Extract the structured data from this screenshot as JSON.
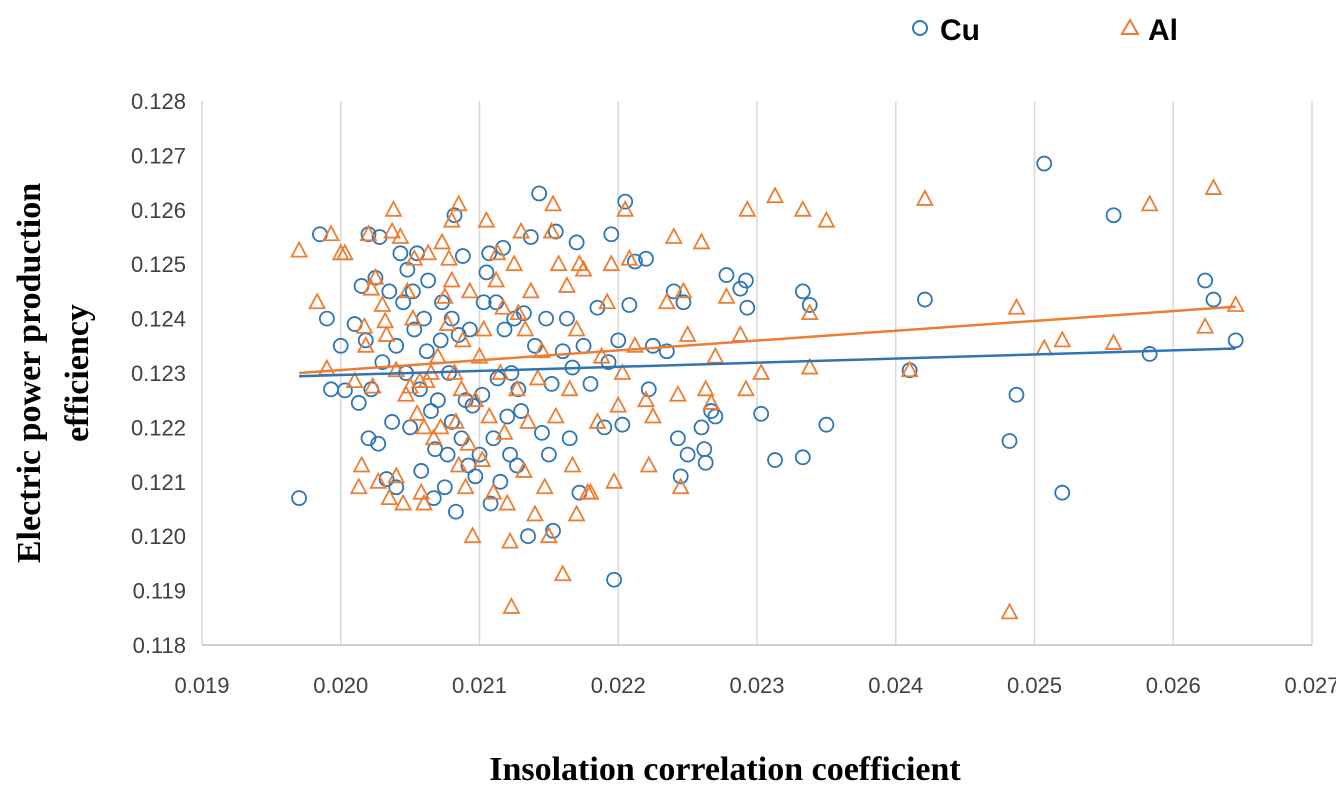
{
  "chart_data": {
    "type": "scatter",
    "xlabel": "Insolation correlation coefficient",
    "ylabel": "Electric power production efficiency",
    "xlim": [
      0.019,
      0.027
    ],
    "ylim": [
      0.118,
      0.128
    ],
    "x_ticks": [
      "0.019",
      "0.020",
      "0.021",
      "0.022",
      "0.023",
      "0.024",
      "0.025",
      "0.026",
      "0.027"
    ],
    "y_ticks": [
      "0.118",
      "0.119",
      "0.120",
      "0.121",
      "0.122",
      "0.123",
      "0.124",
      "0.125",
      "0.126",
      "0.127",
      "0.128"
    ],
    "grid": "vertical",
    "legend_position": "top-right",
    "colors": {
      "Cu": "#2e75b6",
      "Al": "#ed7d31",
      "grid": "#d9d9d9",
      "axis": "#bfbfbf"
    },
    "series": [
      {
        "name": "Cu",
        "marker": "circle",
        "trendline": {
          "x": [
            0.0197,
            0.02645
          ],
          "y": [
            0.12294,
            0.12345
          ]
        },
        "points": [
          [
            0.0197,
            0.1207
          ],
          [
            0.01985,
            0.12555
          ],
          [
            0.0199,
            0.124
          ],
          [
            0.01993,
            0.1227
          ],
          [
            0.02,
            0.1235
          ],
          [
            0.02003,
            0.12268
          ],
          [
            0.0201,
            0.1239
          ],
          [
            0.02013,
            0.12245
          ],
          [
            0.02015,
            0.1246
          ],
          [
            0.02018,
            0.1236
          ],
          [
            0.0202,
            0.1218
          ],
          [
            0.0202,
            0.12555
          ],
          [
            0.02022,
            0.1227
          ],
          [
            0.02025,
            0.12475
          ],
          [
            0.02027,
            0.1217
          ],
          [
            0.02028,
            0.1255
          ],
          [
            0.0203,
            0.1232
          ],
          [
            0.02033,
            0.12105
          ],
          [
            0.02035,
            0.1245
          ],
          [
            0.02037,
            0.1221
          ],
          [
            0.0204,
            0.1235
          ],
          [
            0.0204,
            0.1209
          ],
          [
            0.02043,
            0.1252
          ],
          [
            0.02045,
            0.1243
          ],
          [
            0.02047,
            0.123
          ],
          [
            0.02048,
            0.1249
          ],
          [
            0.0205,
            0.122
          ],
          [
            0.02052,
            0.1245
          ],
          [
            0.02053,
            0.1238
          ],
          [
            0.02055,
            0.1252
          ],
          [
            0.02057,
            0.1227
          ],
          [
            0.02058,
            0.1212
          ],
          [
            0.0206,
            0.124
          ],
          [
            0.02062,
            0.1234
          ],
          [
            0.02063,
            0.1247
          ],
          [
            0.02065,
            0.1223
          ],
          [
            0.02067,
            0.1207
          ],
          [
            0.02068,
            0.1216
          ],
          [
            0.0207,
            0.1225
          ],
          [
            0.02072,
            0.1236
          ],
          [
            0.02073,
            0.1243
          ],
          [
            0.02075,
            0.1209
          ],
          [
            0.02077,
            0.1215
          ],
          [
            0.02078,
            0.123
          ],
          [
            0.0208,
            0.124
          ],
          [
            0.0208,
            0.1221
          ],
          [
            0.02082,
            0.1259
          ],
          [
            0.02083,
            0.12045
          ],
          [
            0.02085,
            0.1237
          ],
          [
            0.02087,
            0.1218
          ],
          [
            0.02088,
            0.12515
          ],
          [
            0.0209,
            0.1225
          ],
          [
            0.02092,
            0.1213
          ],
          [
            0.02093,
            0.1238
          ],
          [
            0.02095,
            0.1224
          ],
          [
            0.02097,
            0.1211
          ],
          [
            0.021,
            0.1215
          ],
          [
            0.02102,
            0.1226
          ],
          [
            0.02103,
            0.1243
          ],
          [
            0.02105,
            0.12485
          ],
          [
            0.02107,
            0.1252
          ],
          [
            0.02108,
            0.1206
          ],
          [
            0.0211,
            0.1218
          ],
          [
            0.02112,
            0.1243
          ],
          [
            0.02113,
            0.1229
          ],
          [
            0.02115,
            0.121
          ],
          [
            0.02117,
            0.1253
          ],
          [
            0.02118,
            0.1238
          ],
          [
            0.0212,
            0.1222
          ],
          [
            0.02122,
            0.1215
          ],
          [
            0.02123,
            0.123
          ],
          [
            0.02125,
            0.124
          ],
          [
            0.02127,
            0.1213
          ],
          [
            0.02128,
            0.1227
          ],
          [
            0.0213,
            0.1223
          ],
          [
            0.02132,
            0.1241
          ],
          [
            0.02135,
            0.12
          ],
          [
            0.02137,
            0.1255
          ],
          [
            0.0214,
            0.1235
          ],
          [
            0.02143,
            0.1263
          ],
          [
            0.02145,
            0.1219
          ],
          [
            0.02148,
            0.124
          ],
          [
            0.0215,
            0.1215
          ],
          [
            0.02152,
            0.1228
          ],
          [
            0.02153,
            0.1201
          ],
          [
            0.02155,
            0.1256
          ],
          [
            0.0216,
            0.1234
          ],
          [
            0.02163,
            0.124
          ],
          [
            0.02165,
            0.1218
          ],
          [
            0.02167,
            0.1231
          ],
          [
            0.0217,
            0.1254
          ],
          [
            0.02172,
            0.1208
          ],
          [
            0.02175,
            0.1235
          ],
          [
            0.0218,
            0.1228
          ],
          [
            0.02185,
            0.1242
          ],
          [
            0.0219,
            0.122
          ],
          [
            0.02193,
            0.1232
          ],
          [
            0.02195,
            0.12555
          ],
          [
            0.02197,
            0.1192
          ],
          [
            0.022,
            0.1236
          ],
          [
            0.02203,
            0.12205
          ],
          [
            0.02205,
            0.12615
          ],
          [
            0.02208,
            0.12425
          ],
          [
            0.02212,
            0.12505
          ],
          [
            0.0222,
            0.1251
          ],
          [
            0.02222,
            0.1227
          ],
          [
            0.02225,
            0.1235
          ],
          [
            0.02235,
            0.1234
          ],
          [
            0.0224,
            0.1245
          ],
          [
            0.02243,
            0.1218
          ],
          [
            0.02245,
            0.1211
          ],
          [
            0.02247,
            0.1243
          ],
          [
            0.0225,
            0.1215
          ],
          [
            0.0226,
            0.122
          ],
          [
            0.02262,
            0.1216
          ],
          [
            0.02263,
            0.12135
          ],
          [
            0.02267,
            0.1223
          ],
          [
            0.0227,
            0.1222
          ],
          [
            0.02278,
            0.1248
          ],
          [
            0.02288,
            0.12455
          ],
          [
            0.02292,
            0.1247
          ],
          [
            0.02293,
            0.1242
          ],
          [
            0.02303,
            0.12225
          ],
          [
            0.02313,
            0.1214
          ],
          [
            0.02333,
            0.1245
          ],
          [
            0.02333,
            0.12145
          ],
          [
            0.02338,
            0.12425
          ],
          [
            0.0235,
            0.12205
          ],
          [
            0.0241,
            0.12305
          ],
          [
            0.02421,
            0.12435
          ],
          [
            0.02482,
            0.12175
          ],
          [
            0.02487,
            0.1226
          ],
          [
            0.02507,
            0.12685
          ],
          [
            0.0252,
            0.1208
          ],
          [
            0.02557,
            0.1259
          ],
          [
            0.02583,
            0.12335
          ],
          [
            0.02623,
            0.1247
          ],
          [
            0.02629,
            0.12435
          ],
          [
            0.02645,
            0.1236
          ]
        ]
      },
      {
        "name": "Al",
        "marker": "triangle",
        "trendline": {
          "x": [
            0.0197,
            0.02645
          ],
          "y": [
            0.123,
            0.12422
          ]
        },
        "points": [
          [
            0.0197,
            0.12525
          ],
          [
            0.01983,
            0.1243
          ],
          [
            0.0199,
            0.12308
          ],
          [
            0.01993,
            0.12555
          ],
          [
            0.02,
            0.1252
          ],
          [
            0.02003,
            0.1252
          ],
          [
            0.0201,
            0.12285
          ],
          [
            0.02013,
            0.1209
          ],
          [
            0.02015,
            0.1213
          ],
          [
            0.02017,
            0.12385
          ],
          [
            0.02018,
            0.1235
          ],
          [
            0.0202,
            0.12555
          ],
          [
            0.02022,
            0.12455
          ],
          [
            0.02023,
            0.12275
          ],
          [
            0.02025,
            0.12475
          ],
          [
            0.02027,
            0.121
          ],
          [
            0.0203,
            0.12425
          ],
          [
            0.02032,
            0.12395
          ],
          [
            0.02033,
            0.1237
          ],
          [
            0.02035,
            0.1207
          ],
          [
            0.02037,
            0.1256
          ],
          [
            0.02038,
            0.126
          ],
          [
            0.0204,
            0.12305
          ],
          [
            0.0204,
            0.1211
          ],
          [
            0.02043,
            0.1255
          ],
          [
            0.02045,
            0.1206
          ],
          [
            0.02047,
            0.1226
          ],
          [
            0.02048,
            0.1245
          ],
          [
            0.0205,
            0.12275
          ],
          [
            0.02052,
            0.124
          ],
          [
            0.02053,
            0.1251
          ],
          [
            0.02055,
            0.12225
          ],
          [
            0.02057,
            0.12285
          ],
          [
            0.02058,
            0.1208
          ],
          [
            0.0206,
            0.1206
          ],
          [
            0.0206,
            0.122
          ],
          [
            0.02062,
            0.12285
          ],
          [
            0.02063,
            0.1252
          ],
          [
            0.02065,
            0.123
          ],
          [
            0.02067,
            0.1218
          ],
          [
            0.0207,
            0.1233
          ],
          [
            0.02072,
            0.122
          ],
          [
            0.02073,
            0.1254
          ],
          [
            0.02075,
            0.1244
          ],
          [
            0.02077,
            0.1239
          ],
          [
            0.02078,
            0.1251
          ],
          [
            0.0208,
            0.1258
          ],
          [
            0.0208,
            0.1247
          ],
          [
            0.02082,
            0.123
          ],
          [
            0.02083,
            0.1221
          ],
          [
            0.02085,
            0.1261
          ],
          [
            0.02085,
            0.1213
          ],
          [
            0.02087,
            0.1227
          ],
          [
            0.02088,
            0.1236
          ],
          [
            0.0209,
            0.1209
          ],
          [
            0.02092,
            0.1217
          ],
          [
            0.02093,
            0.1245
          ],
          [
            0.02095,
            0.12
          ],
          [
            0.02097,
            0.1225
          ],
          [
            0.021,
            0.1233
          ],
          [
            0.02102,
            0.1214
          ],
          [
            0.02103,
            0.1238
          ],
          [
            0.02105,
            0.1258
          ],
          [
            0.02107,
            0.1222
          ],
          [
            0.0211,
            0.1208
          ],
          [
            0.02112,
            0.1247
          ],
          [
            0.02113,
            0.1252
          ],
          [
            0.02115,
            0.123
          ],
          [
            0.02117,
            0.1242
          ],
          [
            0.02118,
            0.1219
          ],
          [
            0.0212,
            0.1206
          ],
          [
            0.02122,
            0.1199
          ],
          [
            0.02123,
            0.1187
          ],
          [
            0.02125,
            0.125
          ],
          [
            0.02127,
            0.1227
          ],
          [
            0.02128,
            0.1241
          ],
          [
            0.0213,
            0.1256
          ],
          [
            0.02132,
            0.1212
          ],
          [
            0.02133,
            0.1238
          ],
          [
            0.02135,
            0.1221
          ],
          [
            0.02137,
            0.1245
          ],
          [
            0.0214,
            0.1204
          ],
          [
            0.02142,
            0.1229
          ],
          [
            0.02145,
            0.1234
          ],
          [
            0.02147,
            0.1209
          ],
          [
            0.0215,
            0.12
          ],
          [
            0.02152,
            0.1256
          ],
          [
            0.02153,
            0.1261
          ],
          [
            0.02155,
            0.1222
          ],
          [
            0.02157,
            0.125
          ],
          [
            0.0216,
            0.1193
          ],
          [
            0.02163,
            0.1246
          ],
          [
            0.02165,
            0.1227
          ],
          [
            0.02167,
            0.1213
          ],
          [
            0.0217,
            0.1238
          ],
          [
            0.0217,
            0.1204
          ],
          [
            0.02172,
            0.125
          ],
          [
            0.02175,
            0.1249
          ],
          [
            0.02178,
            0.1208
          ],
          [
            0.0218,
            0.1208
          ],
          [
            0.02185,
            0.1221
          ],
          [
            0.02188,
            0.1233
          ],
          [
            0.02192,
            0.1243
          ],
          [
            0.02195,
            0.125
          ],
          [
            0.02197,
            0.121
          ],
          [
            0.022,
            0.1224
          ],
          [
            0.02203,
            0.123
          ],
          [
            0.02205,
            0.126
          ],
          [
            0.02208,
            0.1251
          ],
          [
            0.02212,
            0.1235
          ],
          [
            0.0222,
            0.1225
          ],
          [
            0.02222,
            0.1213
          ],
          [
            0.02225,
            0.1222
          ],
          [
            0.02235,
            0.1243
          ],
          [
            0.0224,
            0.1255
          ],
          [
            0.02243,
            0.1226
          ],
          [
            0.02245,
            0.1209
          ],
          [
            0.02247,
            0.1245
          ],
          [
            0.0225,
            0.1237
          ],
          [
            0.0226,
            0.1254
          ],
          [
            0.02263,
            0.1227
          ],
          [
            0.02267,
            0.12245
          ],
          [
            0.0227,
            0.1233
          ],
          [
            0.02278,
            0.1244
          ],
          [
            0.02288,
            0.1237
          ],
          [
            0.02292,
            0.1227
          ],
          [
            0.02293,
            0.126
          ],
          [
            0.02303,
            0.123
          ],
          [
            0.02313,
            0.12625
          ],
          [
            0.02333,
            0.126
          ],
          [
            0.02338,
            0.1241
          ],
          [
            0.02338,
            0.1231
          ],
          [
            0.0235,
            0.1258
          ],
          [
            0.0241,
            0.12305
          ],
          [
            0.02421,
            0.1262
          ],
          [
            0.02482,
            0.1186
          ],
          [
            0.02487,
            0.1242
          ],
          [
            0.02507,
            0.12345
          ],
          [
            0.0252,
            0.1236
          ],
          [
            0.02557,
            0.12355
          ],
          [
            0.02583,
            0.1261
          ],
          [
            0.02623,
            0.12385
          ],
          [
            0.02629,
            0.1264
          ],
          [
            0.02645,
            0.12425
          ]
        ]
      }
    ]
  }
}
